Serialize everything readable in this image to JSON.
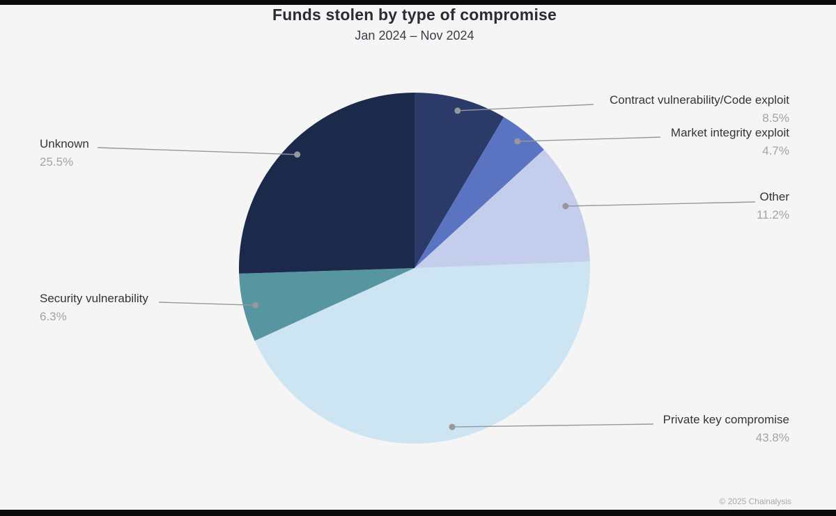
{
  "chart_data": {
    "type": "pie",
    "title": "Funds stolen by type of compromise",
    "subtitle": "Jan 2024 – Nov 2024",
    "legend_position": "callout-labels",
    "direction": "clockwise",
    "start_angle": "12-o-clock",
    "slices": [
      {
        "label": "Contract vulnerability/Code exploit",
        "value": 8.5,
        "percent_text": "8.5%",
        "color": "#2c3a69"
      },
      {
        "label": "Market integrity exploit",
        "value": 4.7,
        "percent_text": "4.7%",
        "color": "#5a74c2"
      },
      {
        "label": "Other",
        "value": 11.2,
        "percent_text": "11.2%",
        "color": "#c5cdec"
      },
      {
        "label": "Private key compromise",
        "value": 43.8,
        "percent_text": "43.8%",
        "color": "#cde4f2"
      },
      {
        "label": "Security vulnerability",
        "value": 6.3,
        "percent_text": "6.3%",
        "color": "#5795a0"
      },
      {
        "label": "Unknown",
        "value": 25.5,
        "percent_text": "25.5%",
        "color": "#1b2a4a"
      }
    ],
    "leader_line_color": "#97979d",
    "background": "#f5f5f6"
  },
  "footer": {
    "credit": "© 2025 Chainalysis"
  }
}
